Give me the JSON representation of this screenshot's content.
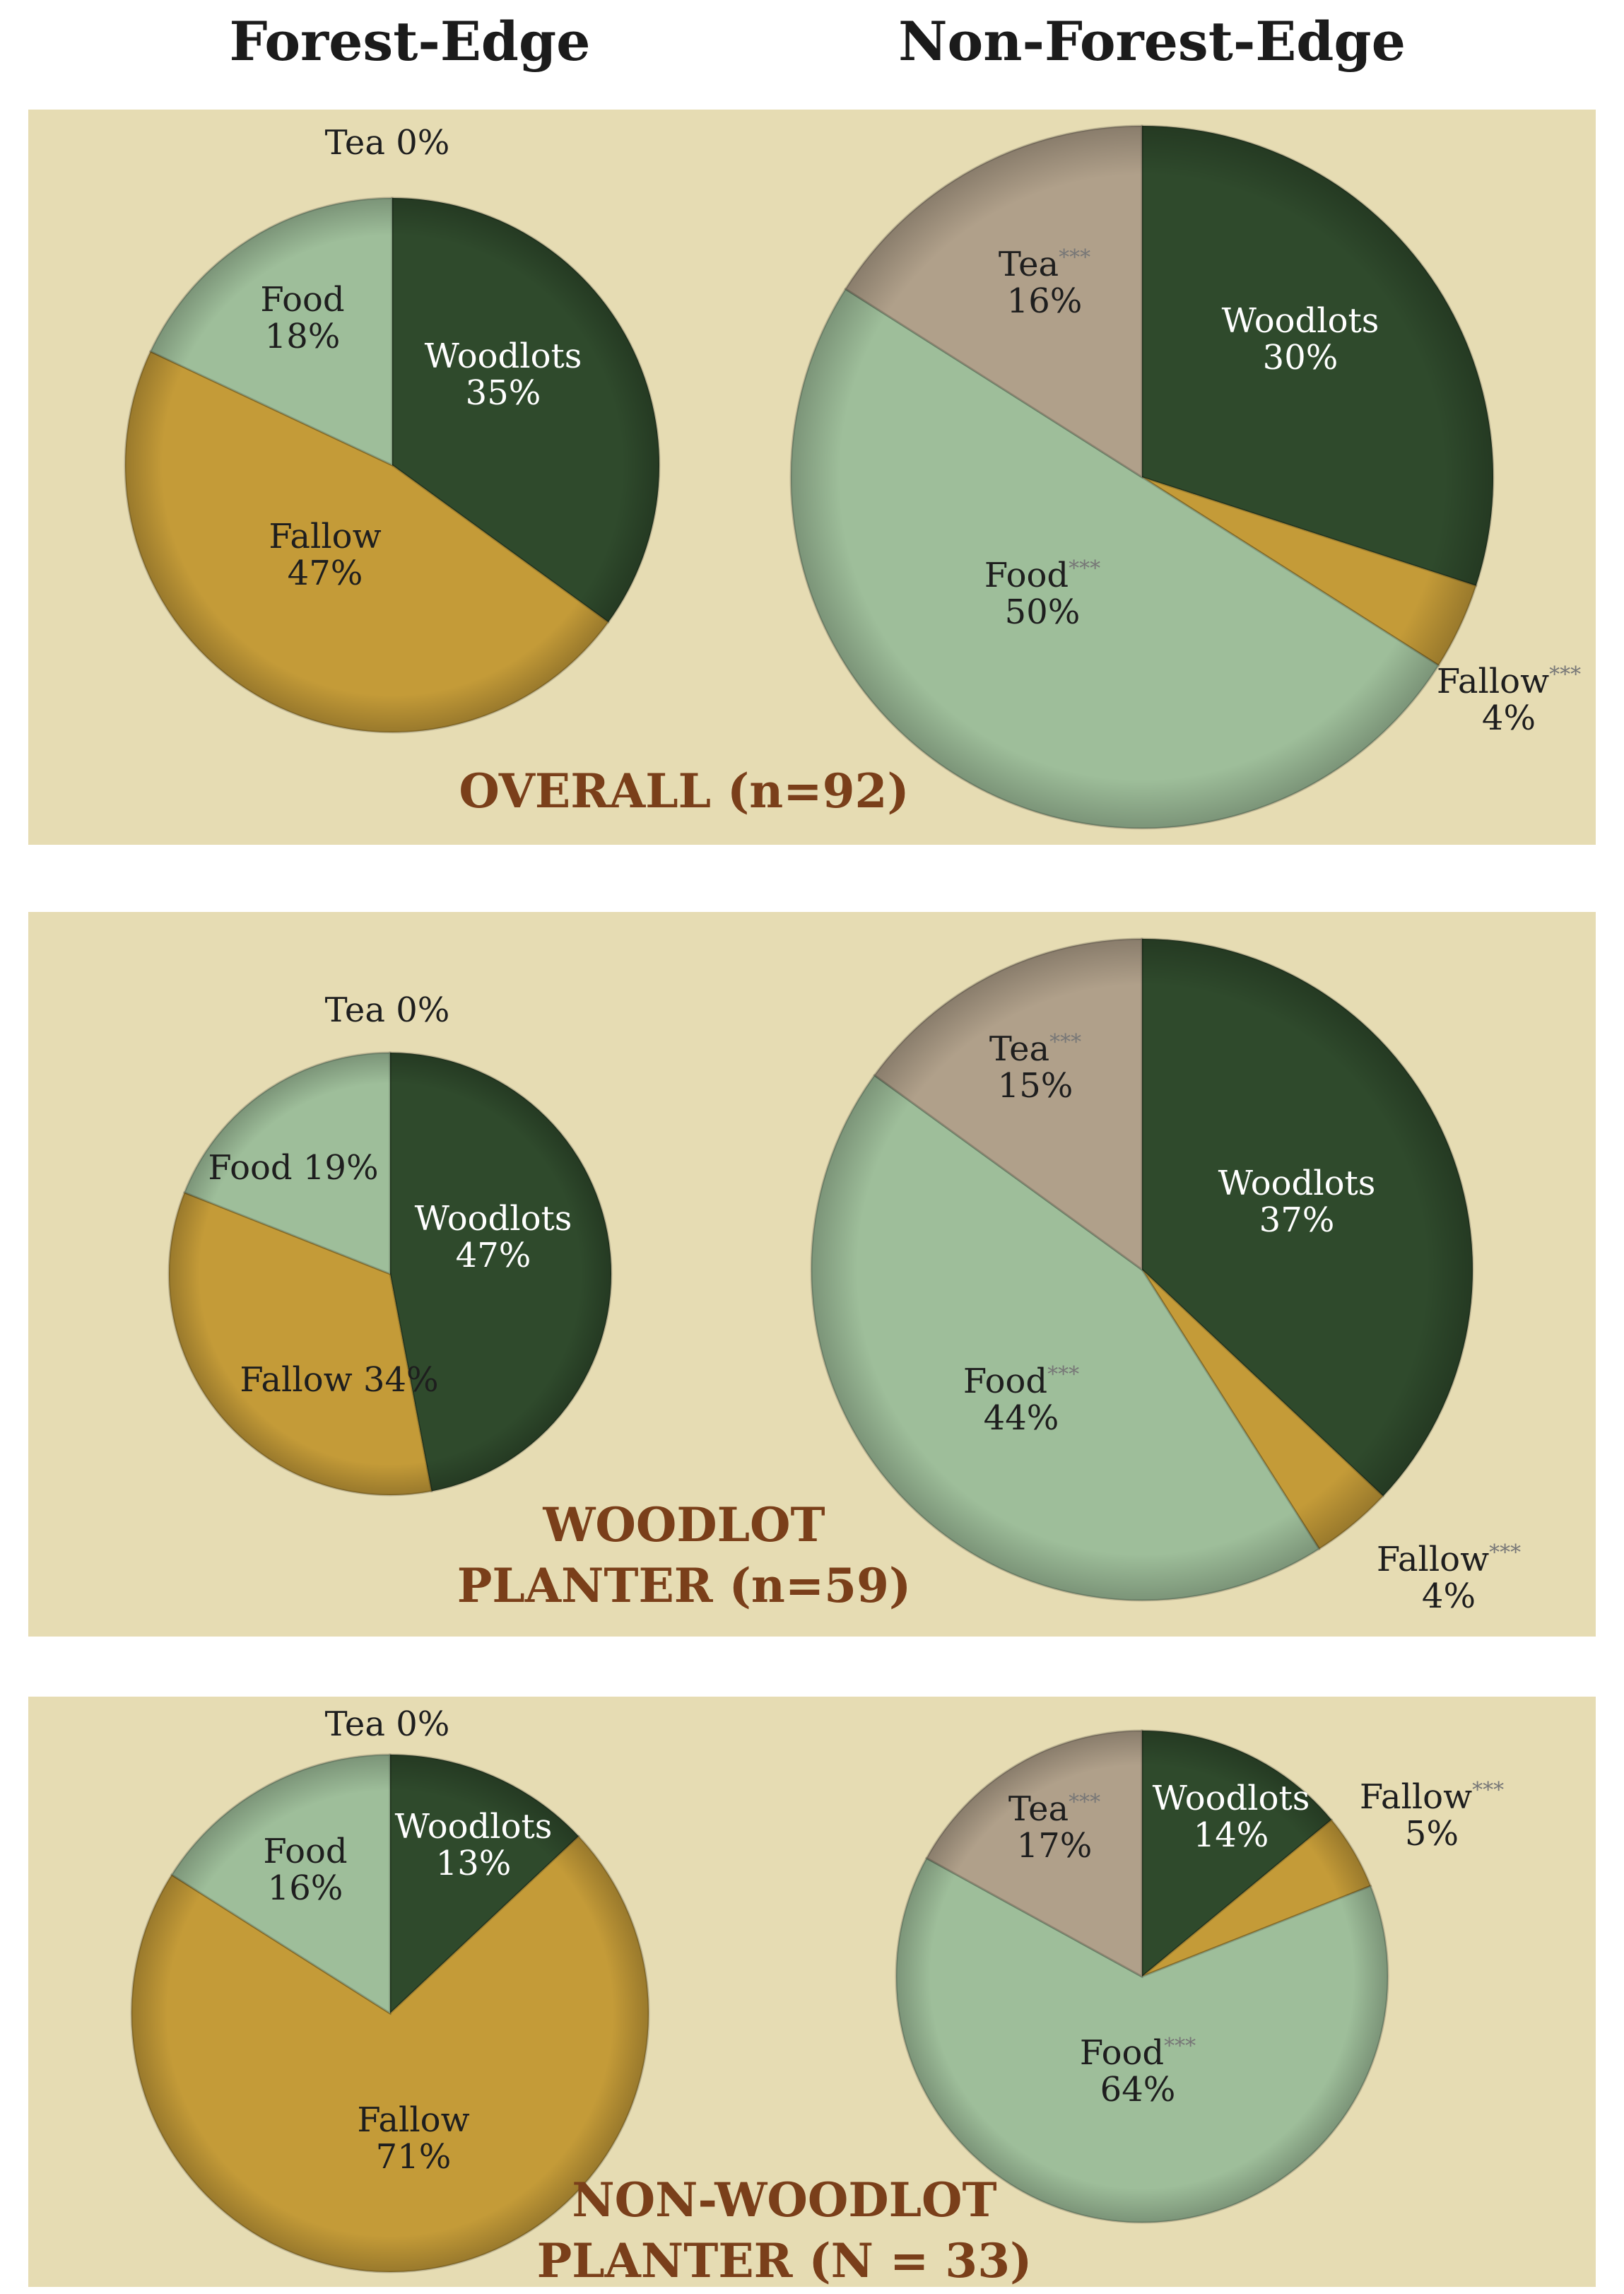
{
  "column_headers": {
    "left": "Forest-Edge",
    "right": "Non-Forest-Edge"
  },
  "colors": {
    "background": "#e6dcb3",
    "Woodlots": "#2f4a2c",
    "Fallow": "#c49b38",
    "Food": "#9ebe9a",
    "Tea": "#b0a08a",
    "panel_label": "#7a3f1a"
  },
  "chart_data": [
    {
      "type": "pie",
      "group": "OVERALL (n=92)",
      "column": "Forest-Edge",
      "slices": [
        {
          "name": "Woodlots",
          "value": 35,
          "label": "Woodlots",
          "pct": "35%",
          "sig": ""
        },
        {
          "name": "Fallow",
          "value": 47,
          "label": "Fallow",
          "pct": "47%",
          "sig": ""
        },
        {
          "name": "Food",
          "value": 18,
          "label": "Food",
          "pct": "18%",
          "sig": ""
        },
        {
          "name": "Tea",
          "value": 0,
          "label": "Tea",
          "pct": "0%",
          "sig": ""
        }
      ]
    },
    {
      "type": "pie",
      "group": "OVERALL (n=92)",
      "column": "Non-Forest-Edge",
      "slices": [
        {
          "name": "Woodlots",
          "value": 30,
          "label": "Woodlots",
          "pct": "30%",
          "sig": ""
        },
        {
          "name": "Fallow",
          "value": 4,
          "label": "Fallow",
          "pct": "4%",
          "sig": "***"
        },
        {
          "name": "Food",
          "value": 50,
          "label": "Food",
          "pct": "50%",
          "sig": "***"
        },
        {
          "name": "Tea",
          "value": 16,
          "label": "Tea",
          "pct": "16%",
          "sig": "***"
        }
      ]
    },
    {
      "type": "pie",
      "group": "WOODLOT PLANTER (n=59)",
      "column": "Forest-Edge",
      "slices": [
        {
          "name": "Woodlots",
          "value": 47,
          "label": "Woodlots",
          "pct": "47%",
          "sig": ""
        },
        {
          "name": "Fallow",
          "value": 34,
          "label": "Fallow",
          "pct": "34%",
          "sig": ""
        },
        {
          "name": "Food",
          "value": 19,
          "label": "Food",
          "pct": "19%",
          "sig": ""
        },
        {
          "name": "Tea",
          "value": 0,
          "label": "Tea",
          "pct": "0%",
          "sig": ""
        }
      ]
    },
    {
      "type": "pie",
      "group": "WOODLOT PLANTER (n=59)",
      "column": "Non-Forest-Edge",
      "slices": [
        {
          "name": "Woodlots",
          "value": 37,
          "label": "Woodlots",
          "pct": "37%",
          "sig": ""
        },
        {
          "name": "Fallow",
          "value": 4,
          "label": "Fallow",
          "pct": "4%",
          "sig": "***"
        },
        {
          "name": "Food",
          "value": 44,
          "label": "Food",
          "pct": "44%",
          "sig": "***"
        },
        {
          "name": "Tea",
          "value": 15,
          "label": "Tea",
          "pct": "15%",
          "sig": "***"
        }
      ]
    },
    {
      "type": "pie",
      "group": "NON-WOODLOT PLANTER (N = 33)",
      "column": "Forest-Edge",
      "slices": [
        {
          "name": "Woodlots",
          "value": 13,
          "label": "Woodlots",
          "pct": "13%",
          "sig": ""
        },
        {
          "name": "Fallow",
          "value": 71,
          "label": "Fallow",
          "pct": "71%",
          "sig": ""
        },
        {
          "name": "Food",
          "value": 16,
          "label": "Food",
          "pct": "16%",
          "sig": ""
        },
        {
          "name": "Tea",
          "value": 0,
          "label": "Tea",
          "pct": "0%",
          "sig": ""
        }
      ]
    },
    {
      "type": "pie",
      "group": "NON-WOODLOT PLANTER (N = 33)",
      "column": "Non-Forest-Edge",
      "slices": [
        {
          "name": "Woodlots",
          "value": 14,
          "label": "Woodlots",
          "pct": "14%",
          "sig": ""
        },
        {
          "name": "Fallow",
          "value": 5,
          "label": "Fallow",
          "pct": "5%",
          "sig": "***"
        },
        {
          "name": "Food",
          "value": 64,
          "label": "Food",
          "pct": "64%",
          "sig": "***"
        },
        {
          "name": "Tea",
          "value": 17,
          "label": "Tea",
          "pct": "17%",
          "sig": "***"
        }
      ]
    }
  ],
  "panels": [
    {
      "label_lines": [
        "OVERALL (n=92)"
      ]
    },
    {
      "label_lines": [
        "WOODLOT",
        "PLANTER (n=59)"
      ]
    },
    {
      "label_lines": [
        "NON-WOODLOT",
        "PLANTER (N = 33)"
      ]
    }
  ]
}
